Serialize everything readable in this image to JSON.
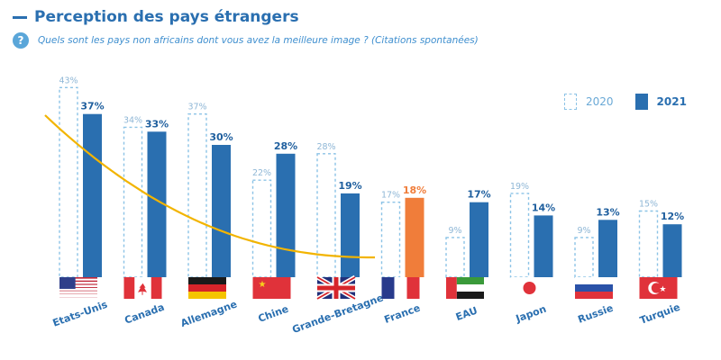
{
  "header": {
    "title": "Perception des pays étrangers",
    "subtitle": "Quels sont les pays non africains dont vous avez la meilleure image ? (Citations spontanées)",
    "help_icon": "question-circle-icon",
    "help_glyph": "?"
  },
  "legend": [
    {
      "label": "2020",
      "style": "dashed-outline"
    },
    {
      "label": "2021",
      "style": "filled"
    }
  ],
  "colors": {
    "bar_2021": "#2a6fb0",
    "bar_highlight": "#f07d3a",
    "outline_2020": "#8cc3e6",
    "label_2020": "#8fb7d6",
    "label_2021": "#1f5f9e",
    "trend": "#f2b400"
  },
  "chart_data": {
    "type": "bar",
    "title": "Perception des pays étrangers",
    "categories": [
      "Etats-Unis",
      "Canada",
      "Allemagne",
      "Chine",
      "Grande-Bretagne",
      "France",
      "EAU",
      "Japon",
      "Russie",
      "Turquie"
    ],
    "series": [
      {
        "name": "2020",
        "values": [
          43,
          34,
          37,
          22,
          28,
          17,
          9,
          19,
          9,
          15
        ],
        "labels": [
          "43%",
          "34%",
          "37%",
          "22%",
          "28%",
          "17%",
          "9%",
          "19%",
          "9%",
          "15%"
        ]
      },
      {
        "name": "2021",
        "values": [
          37,
          33,
          30,
          28,
          19,
          18,
          17,
          14,
          13,
          12
        ],
        "labels": [
          "37%",
          "33%",
          "30%",
          "28%",
          "19%",
          "18%",
          "17%",
          "14%",
          "13%",
          "12%"
        ]
      }
    ],
    "highlight": {
      "category": "France",
      "series": "2021"
    },
    "flags": [
      "us-flag",
      "canada-flag",
      "germany-flag",
      "china-flag",
      "uk-flag",
      "france-flag",
      "uae-flag",
      "japan-flag",
      "russia-flag",
      "turkey-flag"
    ],
    "trend_line": {
      "type": "decreasing curve",
      "from": "Etats-Unis",
      "to": "Grande-Bretagne"
    },
    "ylim": [
      0,
      45
    ],
    "grid": false,
    "legend_position": "top-right"
  }
}
